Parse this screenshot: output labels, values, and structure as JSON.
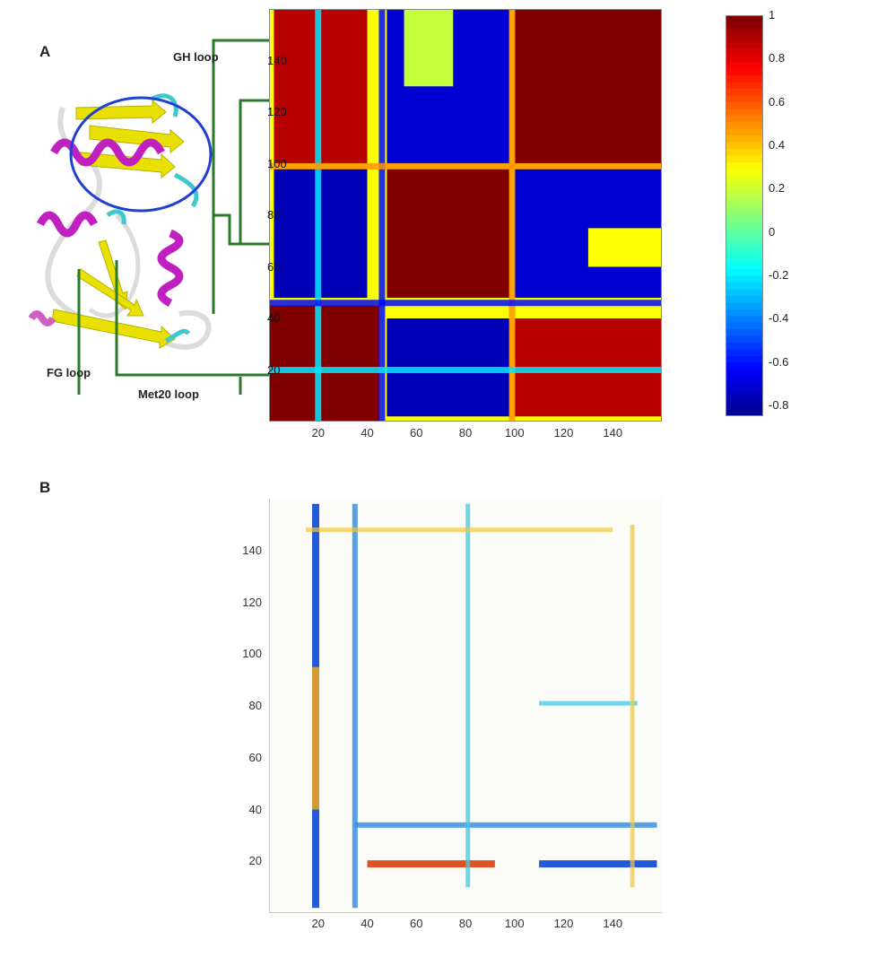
{
  "figure": {
    "panel_a_label": "A",
    "panel_b_label": "B",
    "loops": {
      "gh": "GH loop",
      "fg": "FG loop",
      "met20": "Met20 loop"
    }
  },
  "colors": {
    "helix": "#c020c0",
    "sheet": "#e8e000",
    "turn": "#40c8d0",
    "coil": "#e8e8e8",
    "ellipse": "#2040d0",
    "loop_lines": "#2a7a2a"
  },
  "chart_data": [
    {
      "type": "heatmap",
      "panel": "A",
      "title": "",
      "xlabel": "",
      "ylabel": "",
      "xlim": [
        0,
        160
      ],
      "ylim": [
        0,
        160
      ],
      "xticks": [
        "20",
        "40",
        "60",
        "80",
        "100",
        "120",
        "140"
      ],
      "yticks": [
        "20",
        "40",
        "60",
        "80",
        "100",
        "120",
        "140"
      ],
      "colorbar": {
        "min": -0.85,
        "max": 1,
        "ticks": [
          "1",
          "0.8",
          "0.6",
          "0.4",
          "0.2",
          "0",
          "-0.2",
          "-0.4",
          "-0.6",
          "-0.8"
        ],
        "colormap": "jet"
      },
      "blocks": [
        {
          "x0": 0,
          "x1": 160,
          "y0": 0,
          "y1": 160,
          "value": 0.3
        },
        {
          "x0": 0,
          "x1": 45,
          "y0": 0,
          "y1": 45,
          "value": 1
        },
        {
          "x0": 48,
          "x1": 98,
          "y0": 48,
          "y1": 98,
          "value": 1
        },
        {
          "x0": 100,
          "x1": 160,
          "y0": 100,
          "y1": 160,
          "value": 1
        },
        {
          "x0": 48,
          "x1": 98,
          "y0": 100,
          "y1": 160,
          "value": -0.7
        },
        {
          "x0": 100,
          "x1": 160,
          "y0": 48,
          "y1": 98,
          "value": -0.7
        },
        {
          "x0": 2,
          "x1": 40,
          "y0": 48,
          "y1": 98,
          "value": -0.75
        },
        {
          "x0": 48,
          "x1": 98,
          "y0": 2,
          "y1": 40,
          "value": -0.75
        },
        {
          "x0": 100,
          "x1": 160,
          "y0": 2,
          "y1": 40,
          "value": 0.9
        },
        {
          "x0": 2,
          "x1": 40,
          "y0": 100,
          "y1": 160,
          "value": 0.9
        },
        {
          "x0": 55,
          "x1": 75,
          "y0": 130,
          "y1": 160,
          "value": 0.2
        },
        {
          "x0": 130,
          "x1": 160,
          "y0": 60,
          "y1": 75,
          "value": 0.3
        }
      ],
      "lines": [
        {
          "axis": "x",
          "at": 20,
          "value": -0.2
        },
        {
          "axis": "x",
          "at": 46,
          "value": -0.6
        },
        {
          "axis": "x",
          "at": 99,
          "value": 0.5
        },
        {
          "axis": "y",
          "at": 20,
          "value": -0.2
        },
        {
          "axis": "y",
          "at": 46,
          "value": -0.6
        },
        {
          "axis": "y",
          "at": 99,
          "value": 0.5
        }
      ]
    },
    {
      "type": "heatmap",
      "panel": "B",
      "title": "",
      "xlabel": "",
      "ylabel": "",
      "xlim": [
        0,
        160
      ],
      "ylim": [
        0,
        160
      ],
      "xticks": [
        "20",
        "40",
        "60",
        "80",
        "100",
        "120",
        "140"
      ],
      "yticks": [
        "20",
        "40",
        "60",
        "80",
        "100",
        "120",
        "140"
      ],
      "colormap": "diverging",
      "features": [
        {
          "orientation": "vertical",
          "at": 19,
          "from": 2,
          "to": 158,
          "kind": "negative-strong"
        },
        {
          "orientation": "vertical",
          "at": 35,
          "from": 2,
          "to": 158,
          "kind": "negative"
        },
        {
          "orientation": "horizontal",
          "at": 19,
          "from": 110,
          "to": 158,
          "kind": "negative-strong"
        },
        {
          "orientation": "horizontal",
          "at": 34,
          "from": 35,
          "to": 158,
          "kind": "negative"
        },
        {
          "orientation": "horizontal",
          "at": 19,
          "from": 40,
          "to": 92,
          "kind": "positive-strong"
        },
        {
          "orientation": "vertical",
          "at": 19,
          "from": 40,
          "to": 95,
          "kind": "positive"
        },
        {
          "orientation": "horizontal",
          "at": 81,
          "from": 110,
          "to": 150,
          "kind": "negative-weak"
        },
        {
          "orientation": "vertical",
          "at": 81,
          "from": 10,
          "to": 158,
          "kind": "negative-weak"
        },
        {
          "orientation": "horizontal",
          "at": 148,
          "from": 15,
          "to": 140,
          "kind": "positive-weak"
        },
        {
          "orientation": "vertical",
          "at": 148,
          "from": 10,
          "to": 150,
          "kind": "positive-weak"
        }
      ]
    }
  ]
}
